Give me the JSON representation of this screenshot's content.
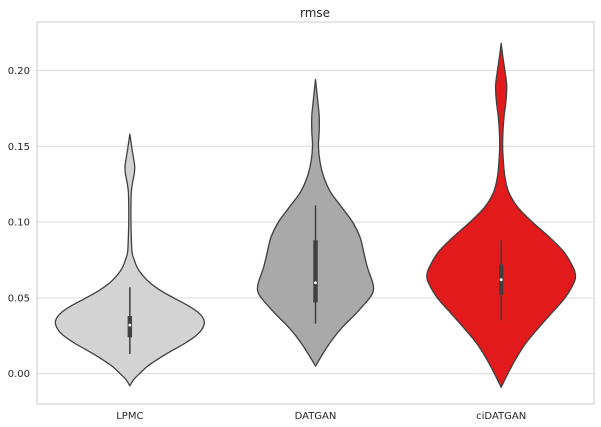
{
  "chart_data": {
    "type": "violin",
    "title": "rmse",
    "xlabel": "",
    "ylabel": "",
    "categories": [
      "LPMC",
      "DATGAN",
      "ciDATGAN"
    ],
    "ylim": [
      -0.02,
      0.232
    ],
    "yticks": [
      "0.00",
      "0.05",
      "0.10",
      "0.15",
      "0.20"
    ],
    "ytick_values": [
      0.0,
      0.05,
      0.1,
      0.15,
      0.2
    ],
    "grid": true,
    "colors": [
      "#d3d3d3",
      "#a9a9a9",
      "#e31a1c"
    ],
    "violins": [
      {
        "category": "LPMC",
        "min": -0.008,
        "max": 0.158,
        "median": 0.032,
        "q1": 0.024,
        "q3": 0.038,
        "whisker_low": 0.013,
        "whisker_high": 0.057,
        "profile": [
          [
            -0.008,
            0
          ],
          [
            -0.004,
            0.05
          ],
          [
            0.0,
            0.13
          ],
          [
            0.005,
            0.24
          ],
          [
            0.01,
            0.39
          ],
          [
            0.015,
            0.56
          ],
          [
            0.02,
            0.74
          ],
          [
            0.025,
            0.89
          ],
          [
            0.03,
            0.98
          ],
          [
            0.035,
            1.0
          ],
          [
            0.04,
            0.93
          ],
          [
            0.045,
            0.78
          ],
          [
            0.05,
            0.59
          ],
          [
            0.055,
            0.41
          ],
          [
            0.06,
            0.27
          ],
          [
            0.065,
            0.17
          ],
          [
            0.07,
            0.1
          ],
          [
            0.075,
            0.06
          ],
          [
            0.08,
            0.03
          ],
          [
            0.09,
            0.02
          ],
          [
            0.1,
            0.015
          ],
          [
            0.11,
            0.015
          ],
          [
            0.12,
            0.02
          ],
          [
            0.127,
            0.04
          ],
          [
            0.132,
            0.06
          ],
          [
            0.137,
            0.065
          ],
          [
            0.142,
            0.05
          ],
          [
            0.148,
            0.03
          ],
          [
            0.153,
            0.015
          ],
          [
            0.158,
            0
          ]
        ]
      },
      {
        "category": "DATGAN",
        "min": 0.005,
        "max": 0.194,
        "median": 0.06,
        "q1": 0.047,
        "q3": 0.088,
        "whisker_low": 0.033,
        "whisker_high": 0.111,
        "profile": [
          [
            0.005,
            0
          ],
          [
            0.01,
            0.06
          ],
          [
            0.02,
            0.19
          ],
          [
            0.03,
            0.35
          ],
          [
            0.04,
            0.55
          ],
          [
            0.05,
            0.73
          ],
          [
            0.055,
            0.78
          ],
          [
            0.06,
            0.77
          ],
          [
            0.07,
            0.7
          ],
          [
            0.08,
            0.65
          ],
          [
            0.09,
            0.6
          ],
          [
            0.1,
            0.5
          ],
          [
            0.11,
            0.35
          ],
          [
            0.12,
            0.2
          ],
          [
            0.13,
            0.11
          ],
          [
            0.14,
            0.06
          ],
          [
            0.15,
            0.04
          ],
          [
            0.16,
            0.05
          ],
          [
            0.17,
            0.05
          ],
          [
            0.18,
            0.03
          ],
          [
            0.194,
            0
          ]
        ]
      },
      {
        "category": "ciDATGAN",
        "min": -0.009,
        "max": 0.218,
        "median": 0.062,
        "q1": 0.052,
        "q3": 0.072,
        "whisker_low": 0.035,
        "whisker_high": 0.088,
        "profile": [
          [
            -0.009,
            0
          ],
          [
            0.0,
            0.09
          ],
          [
            0.01,
            0.2
          ],
          [
            0.02,
            0.33
          ],
          [
            0.03,
            0.5
          ],
          [
            0.04,
            0.68
          ],
          [
            0.05,
            0.86
          ],
          [
            0.06,
            0.98
          ],
          [
            0.065,
            1.0
          ],
          [
            0.07,
            0.97
          ],
          [
            0.08,
            0.85
          ],
          [
            0.09,
            0.65
          ],
          [
            0.1,
            0.42
          ],
          [
            0.11,
            0.22
          ],
          [
            0.12,
            0.1
          ],
          [
            0.13,
            0.05
          ],
          [
            0.14,
            0.03
          ],
          [
            0.15,
            0.02
          ],
          [
            0.16,
            0.025
          ],
          [
            0.17,
            0.04
          ],
          [
            0.18,
            0.065
          ],
          [
            0.19,
            0.075
          ],
          [
            0.2,
            0.05
          ],
          [
            0.21,
            0.02
          ],
          [
            0.218,
            0
          ]
        ]
      }
    ]
  }
}
